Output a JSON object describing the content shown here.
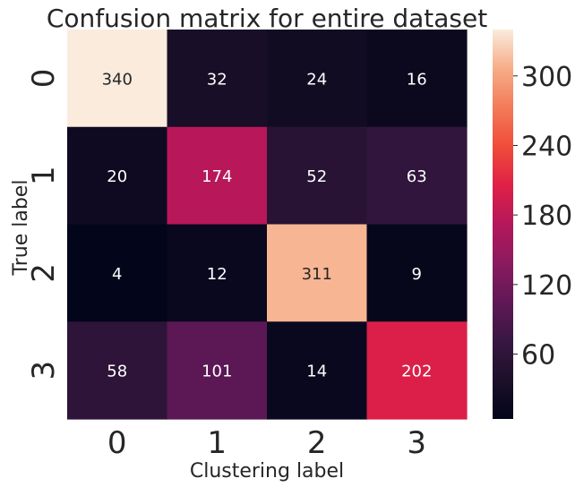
{
  "chart_data": {
    "type": "heatmap",
    "title": "Confusion matrix for entire dataset",
    "xlabel": "Clustering label",
    "ylabel": "True label",
    "x_categories": [
      "0",
      "1",
      "2",
      "3"
    ],
    "y_categories": [
      "0",
      "1",
      "2",
      "3"
    ],
    "values": [
      [
        340,
        32,
        24,
        16
      ],
      [
        20,
        174,
        52,
        63
      ],
      [
        4,
        12,
        311,
        9
      ],
      [
        58,
        101,
        14,
        202
      ]
    ],
    "colorbar": {
      "vmin": 4,
      "vmax": 340,
      "ticks": [
        "60",
        "120",
        "180",
        "240",
        "300"
      ],
      "tick_values": [
        60,
        120,
        180,
        240,
        300
      ]
    },
    "colormap": "rocket",
    "annotations": true
  }
}
